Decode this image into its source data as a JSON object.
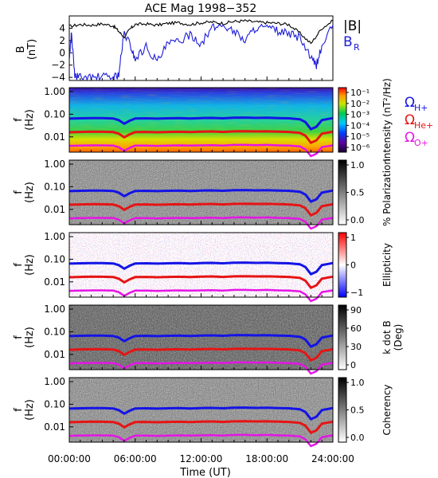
{
  "figure": {
    "title": "ACE Mag 1998−352",
    "xlabel": "Time (UT)",
    "x_ticks": [
      "00:00:00",
      "06:00:00",
      "12:00:00",
      "18:00:00",
      "24:00:00"
    ],
    "freq_ticks": [
      "1.00",
      "0.10",
      "0.01"
    ],
    "freq_label_f": "f",
    "freq_label_units": "(Hz)"
  },
  "colors": {
    "B_total": "#000000",
    "B_R": "#1d1dd8",
    "H_plus": "#1414e6",
    "He_plus": "#e61414",
    "O_plus": "#e614e6"
  },
  "chart_data": [
    {
      "type": "line",
      "panel": "B",
      "ylabel": "B",
      "ylabel_units": "(nT)",
      "ylim": [
        -4.5,
        6.0
      ],
      "y_ticks": [
        "4",
        "2",
        "0",
        "−2",
        "−4"
      ],
      "legend": [
        "|B|",
        "B",
        "R"
      ],
      "series": [
        {
          "name": "|B|",
          "x": [
            0,
            1,
            2,
            3,
            4,
            4.5,
            5,
            5.5,
            6,
            7,
            8,
            9,
            10,
            11,
            12,
            13,
            14,
            15,
            16,
            17,
            18,
            19,
            20,
            21,
            22,
            23,
            24
          ],
          "y": [
            4.3,
            4.6,
            4.5,
            4.7,
            4.4,
            3.5,
            2.5,
            3.8,
            4.6,
            4.7,
            4.5,
            4.8,
            4.9,
            4.6,
            4.9,
            5.0,
            4.8,
            5.1,
            5.2,
            5.0,
            4.9,
            4.8,
            4.6,
            3.2,
            1.5,
            4.0,
            5.2
          ]
        },
        {
          "name": "B_R",
          "x": [
            0,
            0.2,
            0.5,
            1,
            2,
            3,
            4,
            4.5,
            5,
            5.5,
            6,
            7,
            8,
            9,
            10,
            11,
            12,
            13,
            14,
            15,
            16,
            17,
            18,
            19,
            20,
            21,
            22,
            22.5,
            23,
            24
          ],
          "y": [
            -1.0,
            3.2,
            -3.8,
            -4.0,
            -4.1,
            -3.9,
            -4.0,
            -3.5,
            3.2,
            1.5,
            -1.0,
            1.0,
            -1.5,
            1.5,
            1.8,
            3.0,
            1.5,
            4.0,
            4.5,
            3.5,
            2.0,
            4.2,
            4.0,
            3.5,
            3.0,
            2.5,
            -1.0,
            -2.0,
            1.0,
            4.5
          ]
        }
      ]
    },
    {
      "type": "heatmap",
      "panel": "intensity",
      "colorbar_label": "Intensity (nT²/Hz)",
      "colorbar_ticks": [
        "10⁻¹",
        "10⁻²",
        "10⁻³",
        "10⁻⁴",
        "10⁻⁵",
        "10⁻⁶"
      ],
      "side_labels": [
        {
          "symbol": "Ω",
          "sub": "H+",
          "color": "#1414e6"
        },
        {
          "symbol": "Ω",
          "sub": "He+",
          "color": "#e61414"
        },
        {
          "symbol": "Ω",
          "sub": "O+",
          "color": "#e614e6"
        }
      ]
    },
    {
      "type": "heatmap",
      "panel": "polarization",
      "colorbar_label": "% Polarization",
      "colorbar_ticks": [
        "1.0",
        "0.5",
        "0.0"
      ]
    },
    {
      "type": "heatmap",
      "panel": "ellipticity",
      "colorbar_label": "Ellipticity",
      "colorbar_ticks": [
        "1",
        "0",
        "−1"
      ]
    },
    {
      "type": "heatmap",
      "panel": "kdotb",
      "colorbar_label": "k dot B",
      "colorbar_label2": "(Deg)",
      "colorbar_ticks": [
        "90",
        "60",
        "30",
        "0"
      ]
    },
    {
      "type": "heatmap",
      "panel": "coherency",
      "colorbar_label": "Coherency",
      "colorbar_ticks": [
        "1.0",
        "0.5",
        "0.0"
      ]
    }
  ],
  "gyrofrequency_lines": {
    "x": [
      0,
      1,
      2,
      3,
      4,
      4.5,
      5,
      5.5,
      6,
      7,
      8,
      9,
      10,
      11,
      12,
      13,
      14,
      15,
      16,
      17,
      18,
      19,
      20,
      21,
      21.5,
      22,
      22.5,
      23,
      24
    ],
    "H_plus": [
      0.064,
      0.066,
      0.068,
      0.067,
      0.065,
      0.055,
      0.038,
      0.052,
      0.065,
      0.066,
      0.064,
      0.066,
      0.067,
      0.065,
      0.068,
      0.069,
      0.066,
      0.07,
      0.071,
      0.069,
      0.07,
      0.068,
      0.066,
      0.06,
      0.045,
      0.022,
      0.028,
      0.055,
      0.068
    ],
    "He_plus": [
      0.016,
      0.0165,
      0.017,
      0.0168,
      0.0163,
      0.0138,
      0.0095,
      0.013,
      0.0163,
      0.0165,
      0.016,
      0.0165,
      0.0168,
      0.0163,
      0.017,
      0.0173,
      0.0165,
      0.0175,
      0.0178,
      0.0173,
      0.0175,
      0.017,
      0.0165,
      0.015,
      0.0113,
      0.0055,
      0.007,
      0.0138,
      0.017
    ],
    "O_plus": [
      0.004,
      0.0041,
      0.0042,
      0.0042,
      0.0041,
      0.0035,
      0.0024,
      0.0033,
      0.0041,
      0.0041,
      0.004,
      0.0041,
      0.0042,
      0.0041,
      0.0042,
      0.0043,
      0.0041,
      0.0044,
      0.0044,
      0.0043,
      0.0044,
      0.0042,
      0.0041,
      0.0038,
      0.0028,
      0.0014,
      0.0018,
      0.0035,
      0.0042
    ]
  }
}
